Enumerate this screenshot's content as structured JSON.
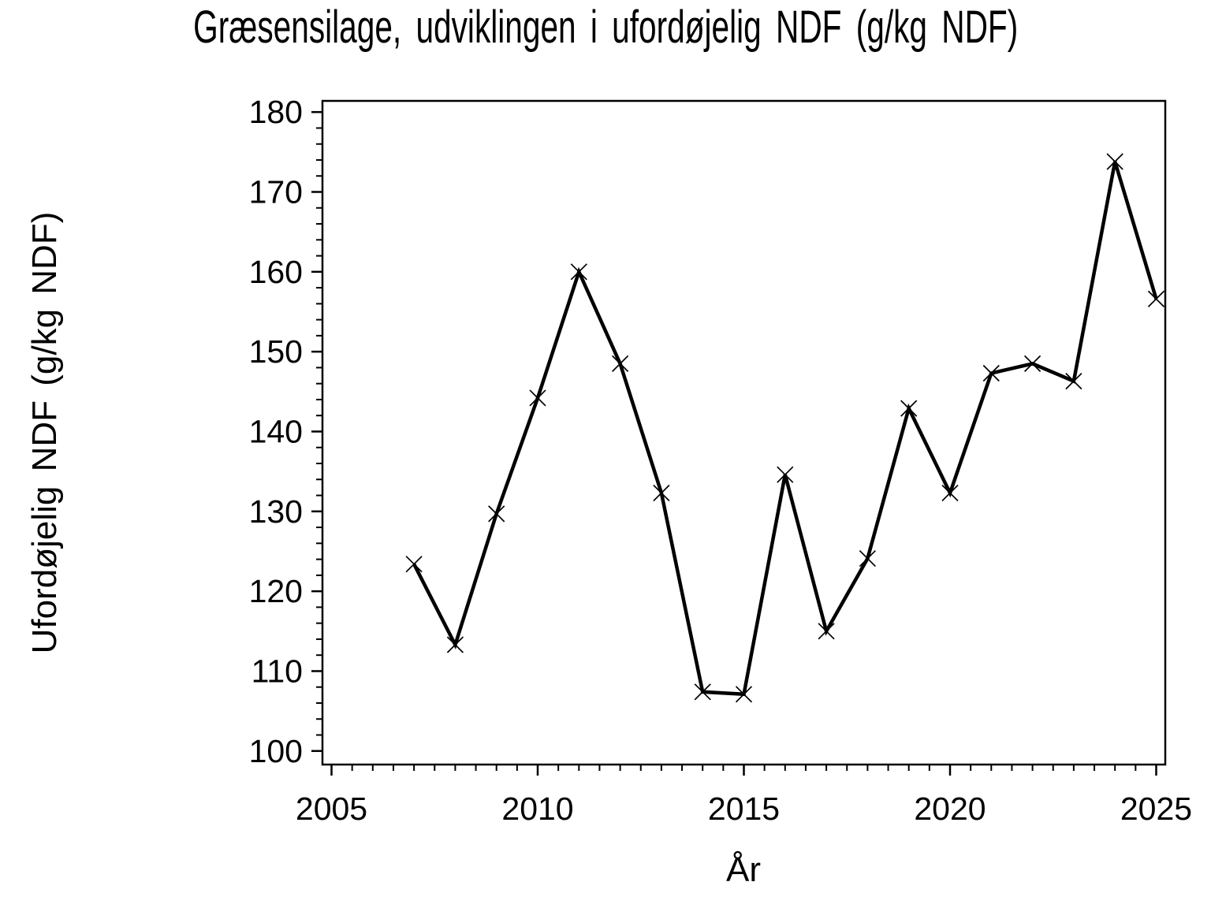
{
  "chart_data": {
    "type": "line",
    "title": "Græsensilage, udviklingen i ufordøjelig NDF (g/kg NDF)",
    "xlabel": "År",
    "ylabel": "Ufordøjelig NDF (g/kg NDF)",
    "x": [
      2007,
      2008,
      2009,
      2010,
      2011,
      2012,
      2013,
      2014,
      2015,
      2016,
      2017,
      2018,
      2019,
      2020,
      2021,
      2022,
      2023,
      2024,
      2025
    ],
    "series": [
      {
        "name": "Ufordøjelig NDF (g/kg NDF)",
        "values": [
          123.4,
          113.3,
          129.7,
          144.2,
          160.0,
          148.5,
          132.3,
          107.4,
          107.1,
          134.6,
          115.0,
          124.1,
          142.9,
          132.3,
          147.3,
          148.5,
          146.3,
          173.8,
          156.6
        ]
      }
    ],
    "xlim": [
      2004.78,
      2025.22
    ],
    "ylim": [
      98.3,
      181.4
    ],
    "x_major_ticks": [
      2005,
      2010,
      2015,
      2020,
      2025
    ],
    "x_minor_step": 0.5,
    "y_major_ticks": [
      100,
      110,
      120,
      130,
      140,
      150,
      160,
      170,
      180
    ],
    "y_minor_step": 2,
    "marker": "x-cross",
    "line_color": "#000000",
    "axis_color": "#000000",
    "background": "#ffffff",
    "grid": false,
    "legend": null
  }
}
